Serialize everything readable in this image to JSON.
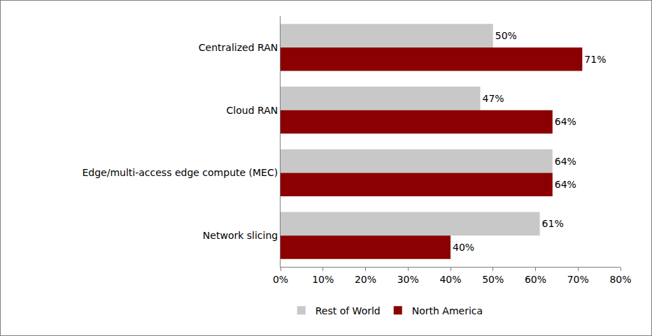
{
  "chart_data": {
    "type": "bar",
    "orientation": "horizontal",
    "categories": [
      "Centralized RAN",
      "Cloud RAN",
      "Edge/multi-access edge compute (MEC)",
      "Network slicing"
    ],
    "series": [
      {
        "name": "Rest of World",
        "color": "#c8c8c8",
        "values": [
          50,
          47,
          64,
          61
        ],
        "value_labels": [
          "50%",
          "47%",
          "64%",
          "61%"
        ]
      },
      {
        "name": "North America",
        "color": "#8b0000",
        "values": [
          71,
          64,
          64,
          40
        ],
        "value_labels": [
          "71%",
          "64%",
          "64%",
          "40%"
        ]
      }
    ],
    "xlim": [
      0,
      80
    ],
    "xticks": [
      {
        "value": 0,
        "label": "0%"
      },
      {
        "value": 10,
        "label": "10%"
      },
      {
        "value": 20,
        "label": "20%"
      },
      {
        "value": 30,
        "label": "30%"
      },
      {
        "value": 40,
        "label": "40%"
      },
      {
        "value": 50,
        "label": "50%"
      },
      {
        "value": 60,
        "label": "60%"
      },
      {
        "value": 70,
        "label": "70%"
      },
      {
        "value": 80,
        "label": "80%"
      }
    ],
    "grid": false,
    "data_labels": true,
    "legend": "bottom"
  }
}
